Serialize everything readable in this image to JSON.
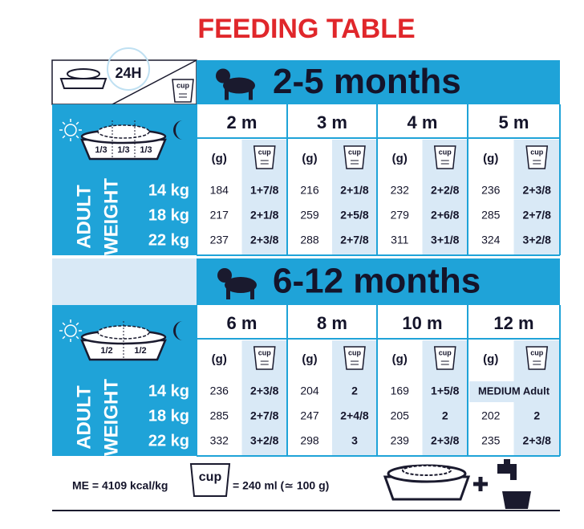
{
  "title": "FEEDING TABLE",
  "header": {
    "period": "24H",
    "cup": "cup"
  },
  "sections": [
    {
      "title": "2-5 months",
      "fractions": [
        "1/3",
        "1/3",
        "1/3"
      ],
      "columns": [
        "2 m",
        "3 m",
        "4 m",
        "5 m"
      ],
      "unit": "(g)",
      "cup": "cup",
      "side_labels": [
        "ADULT",
        "WEIGHT"
      ],
      "rows": [
        {
          "weight": "14 kg",
          "cells": [
            {
              "g": 184,
              "cup": "1+7/8"
            },
            {
              "g": 216,
              "cup": "2+1/8"
            },
            {
              "g": 232,
              "cup": "2+2/8"
            },
            {
              "g": 236,
              "cup": "2+3/8"
            }
          ]
        },
        {
          "weight": "18 kg",
          "cells": [
            {
              "g": 217,
              "cup": "2+1/8"
            },
            {
              "g": 259,
              "cup": "2+5/8"
            },
            {
              "g": 279,
              "cup": "2+6/8"
            },
            {
              "g": 285,
              "cup": "2+7/8"
            }
          ]
        },
        {
          "weight": "22 kg",
          "cells": [
            {
              "g": 237,
              "cup": "2+3/8"
            },
            {
              "g": 288,
              "cup": "2+7/8"
            },
            {
              "g": 311,
              "cup": "3+1/8"
            },
            {
              "g": 324,
              "cup": "3+2/8"
            }
          ]
        }
      ]
    },
    {
      "title": "6-12 months",
      "fractions": [
        "1/2",
        "1/2"
      ],
      "columns": [
        "6 m",
        "8 m",
        "10 m",
        "12 m"
      ],
      "unit": "(g)",
      "cup": "cup",
      "side_labels": [
        "ADULT",
        "WEIGHT"
      ],
      "rows": [
        {
          "weight": "14 kg",
          "cells": [
            {
              "g": 236,
              "cup": "2+3/8"
            },
            {
              "g": 204,
              "cup": "2"
            },
            {
              "g": 169,
              "cup": "1+5/8"
            },
            {
              "note": "MEDIUM Adult"
            }
          ]
        },
        {
          "weight": "18 kg",
          "cells": [
            {
              "g": 285,
              "cup": "2+7/8"
            },
            {
              "g": 247,
              "cup": "2+4/8"
            },
            {
              "g": 205,
              "cup": "2"
            },
            {
              "g": 202,
              "cup": "2"
            }
          ]
        },
        {
          "weight": "22 kg",
          "cells": [
            {
              "g": 332,
              "cup": "3+2/8"
            },
            {
              "g": 298,
              "cup": "3"
            },
            {
              "g": 239,
              "cup": "2+3/8"
            },
            {
              "g": 235,
              "cup": "2+3/8"
            }
          ]
        }
      ]
    }
  ],
  "footer": {
    "energy": "ME = 4109 kcal/kg",
    "cup": "cup",
    "equivalence": "= 240 ml (≃ 100 g)"
  }
}
